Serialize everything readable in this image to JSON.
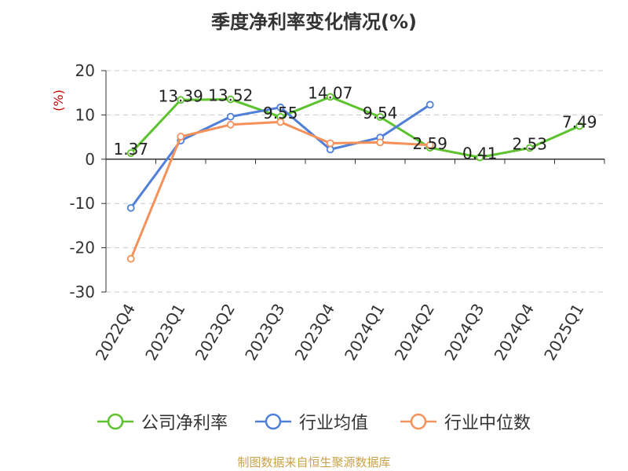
{
  "chart_data": {
    "type": "line",
    "title": "季度净利率变化情况(%)",
    "ylabel": "(%)",
    "categories": [
      "2022Q4",
      "2023Q1",
      "2023Q2",
      "2023Q3",
      "2023Q4",
      "2024Q1",
      "2024Q2",
      "2024Q3",
      "2024Q4",
      "2025Q1"
    ],
    "ylim": [
      -30,
      20
    ],
    "yticks": [
      20,
      10,
      0,
      -10,
      -20,
      -30
    ],
    "grid": true,
    "legend_position": "bottom",
    "series": [
      {
        "name": "公司净利率",
        "color": "#5cc22d",
        "values": [
          1.37,
          13.39,
          13.52,
          9.55,
          14.07,
          9.54,
          2.59,
          0.41,
          2.53,
          7.49
        ],
        "labels": [
          "1.37",
          "13.39",
          "13.52",
          "9.55",
          "14.07",
          "9.54",
          "2.59",
          "0.41",
          "2.53",
          "7.49"
        ]
      },
      {
        "name": "行业均值",
        "color": "#4f7fd9",
        "values": [
          -11,
          4.2,
          9.6,
          11.7,
          2.2,
          4.9,
          12.3,
          null,
          null,
          null
        ]
      },
      {
        "name": "行业中位数",
        "color": "#f5915a",
        "values": [
          -22.5,
          5.1,
          7.8,
          8.4,
          3.6,
          3.8,
          3.2,
          null,
          null,
          null
        ]
      }
    ]
  },
  "source_note": "制图数据来自恒生聚源数据库"
}
